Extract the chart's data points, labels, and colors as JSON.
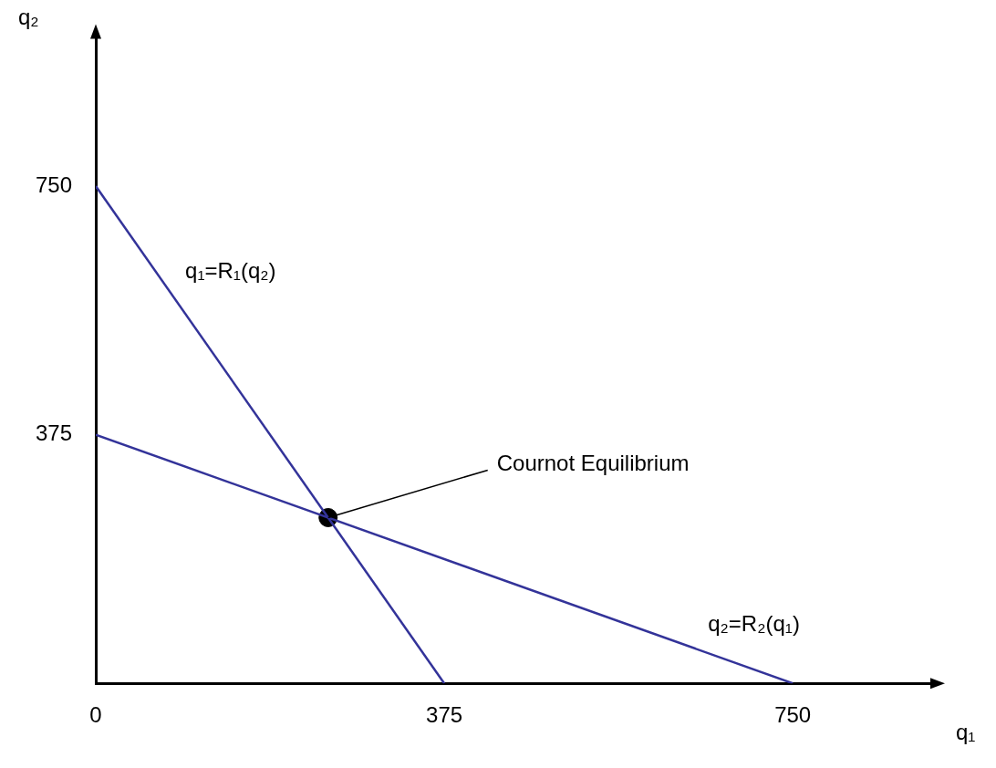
{
  "chart_data": {
    "type": "line",
    "xlabel": "q₁",
    "ylabel": "q₂",
    "xlim": [
      0,
      900
    ],
    "ylim": [
      0,
      975
    ],
    "xticks": [
      0,
      375,
      750
    ],
    "yticks": [
      375,
      750
    ],
    "grid": false,
    "legend": false,
    "marker": "none",
    "series": [
      {
        "name": "q₁=R₁(q₂)",
        "color": "#333399",
        "x": [
          0,
          375
        ],
        "values": [
          750,
          0
        ]
      },
      {
        "name": "q₂=R₂(q₁)",
        "color": "#333399",
        "x": [
          0,
          750
        ],
        "values": [
          375,
          0
        ]
      },
      {
        "type": "scatter",
        "marker": "circle",
        "color": "#000000",
        "x": [
          250
        ],
        "values": [
          250
        ]
      }
    ],
    "annotations": [
      {
        "text": "Cournot Equilibrium",
        "x": 250,
        "y": 250
      }
    ]
  }
}
